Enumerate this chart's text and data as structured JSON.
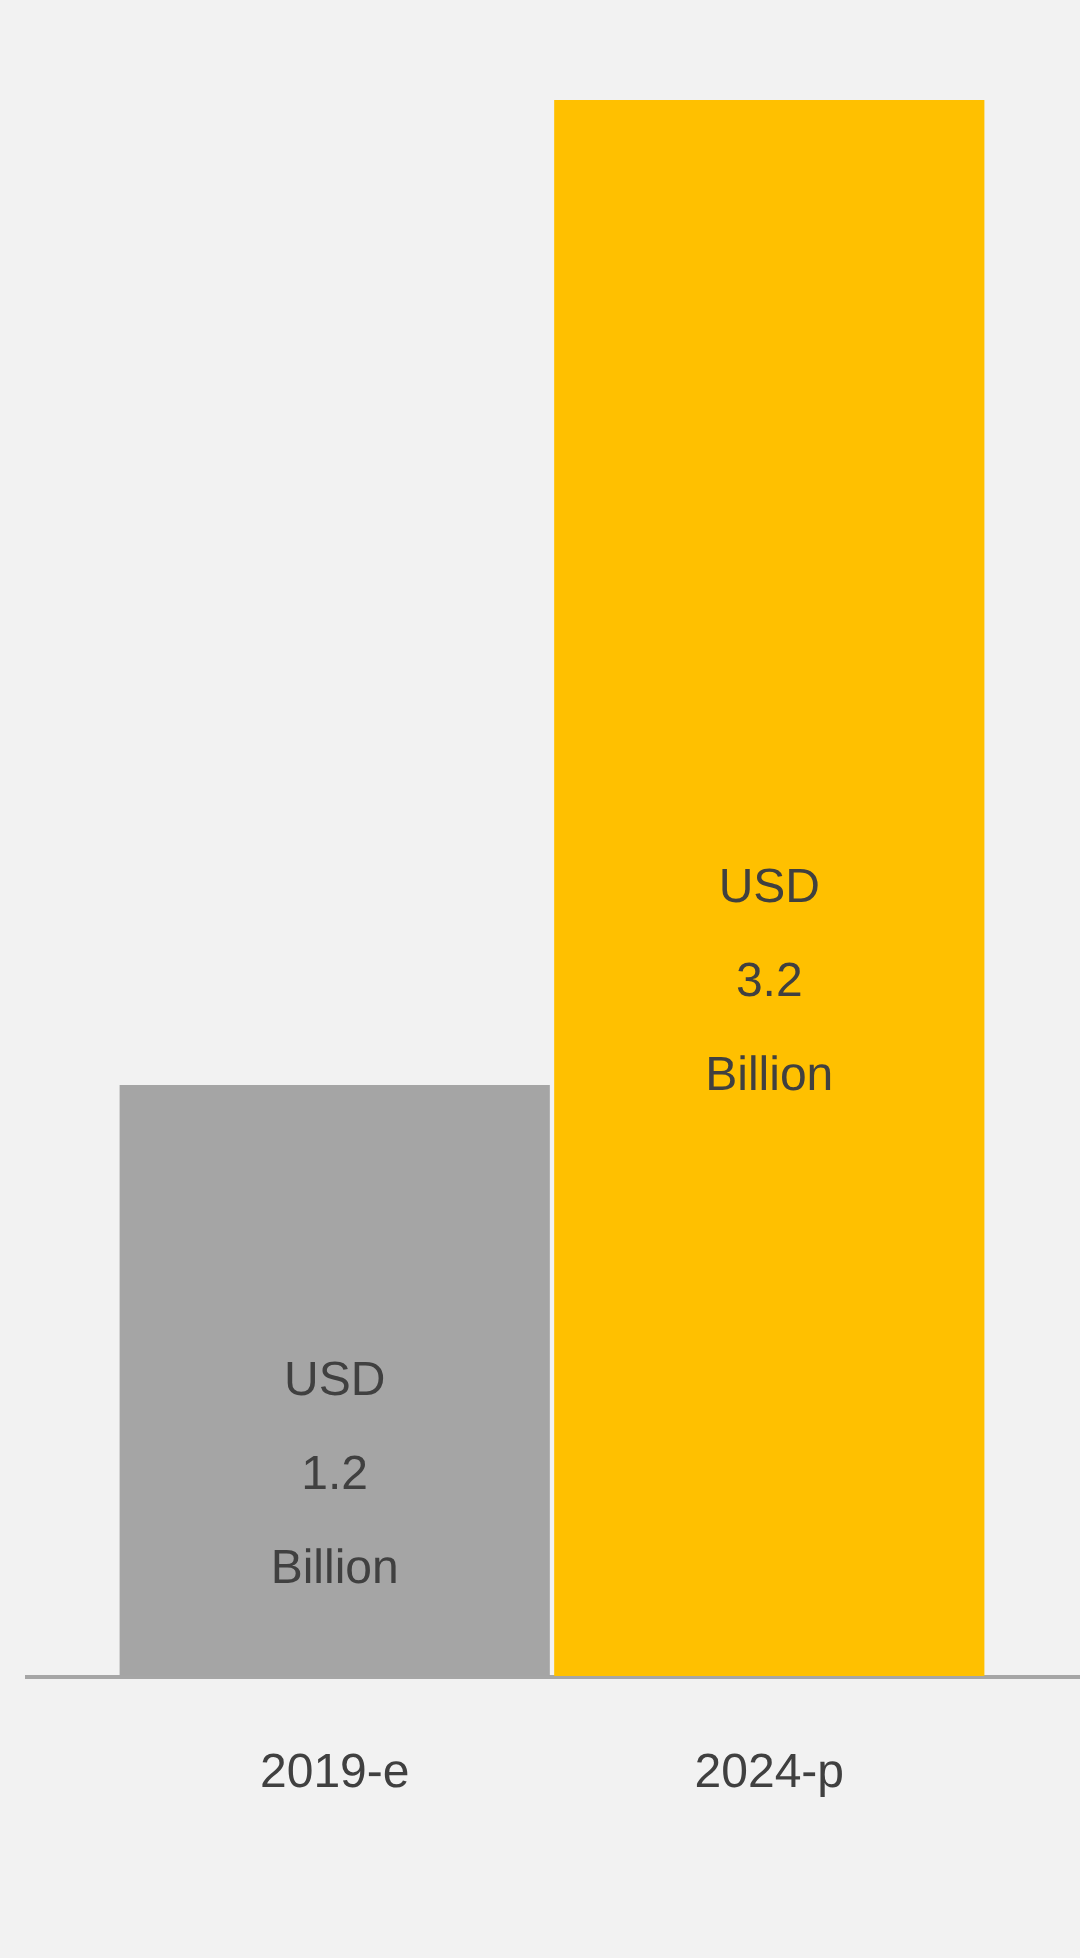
{
  "chart_data": {
    "type": "bar",
    "categories": [
      "2019-e",
      "2024-p"
    ],
    "values": [
      1.2,
      3.2
    ],
    "colors": [
      "#a5a5a5",
      "#ffc000"
    ],
    "value_labels": [
      "USD 1.2 Billion",
      "USD 3.2 Billion"
    ],
    "grid": false
  }
}
